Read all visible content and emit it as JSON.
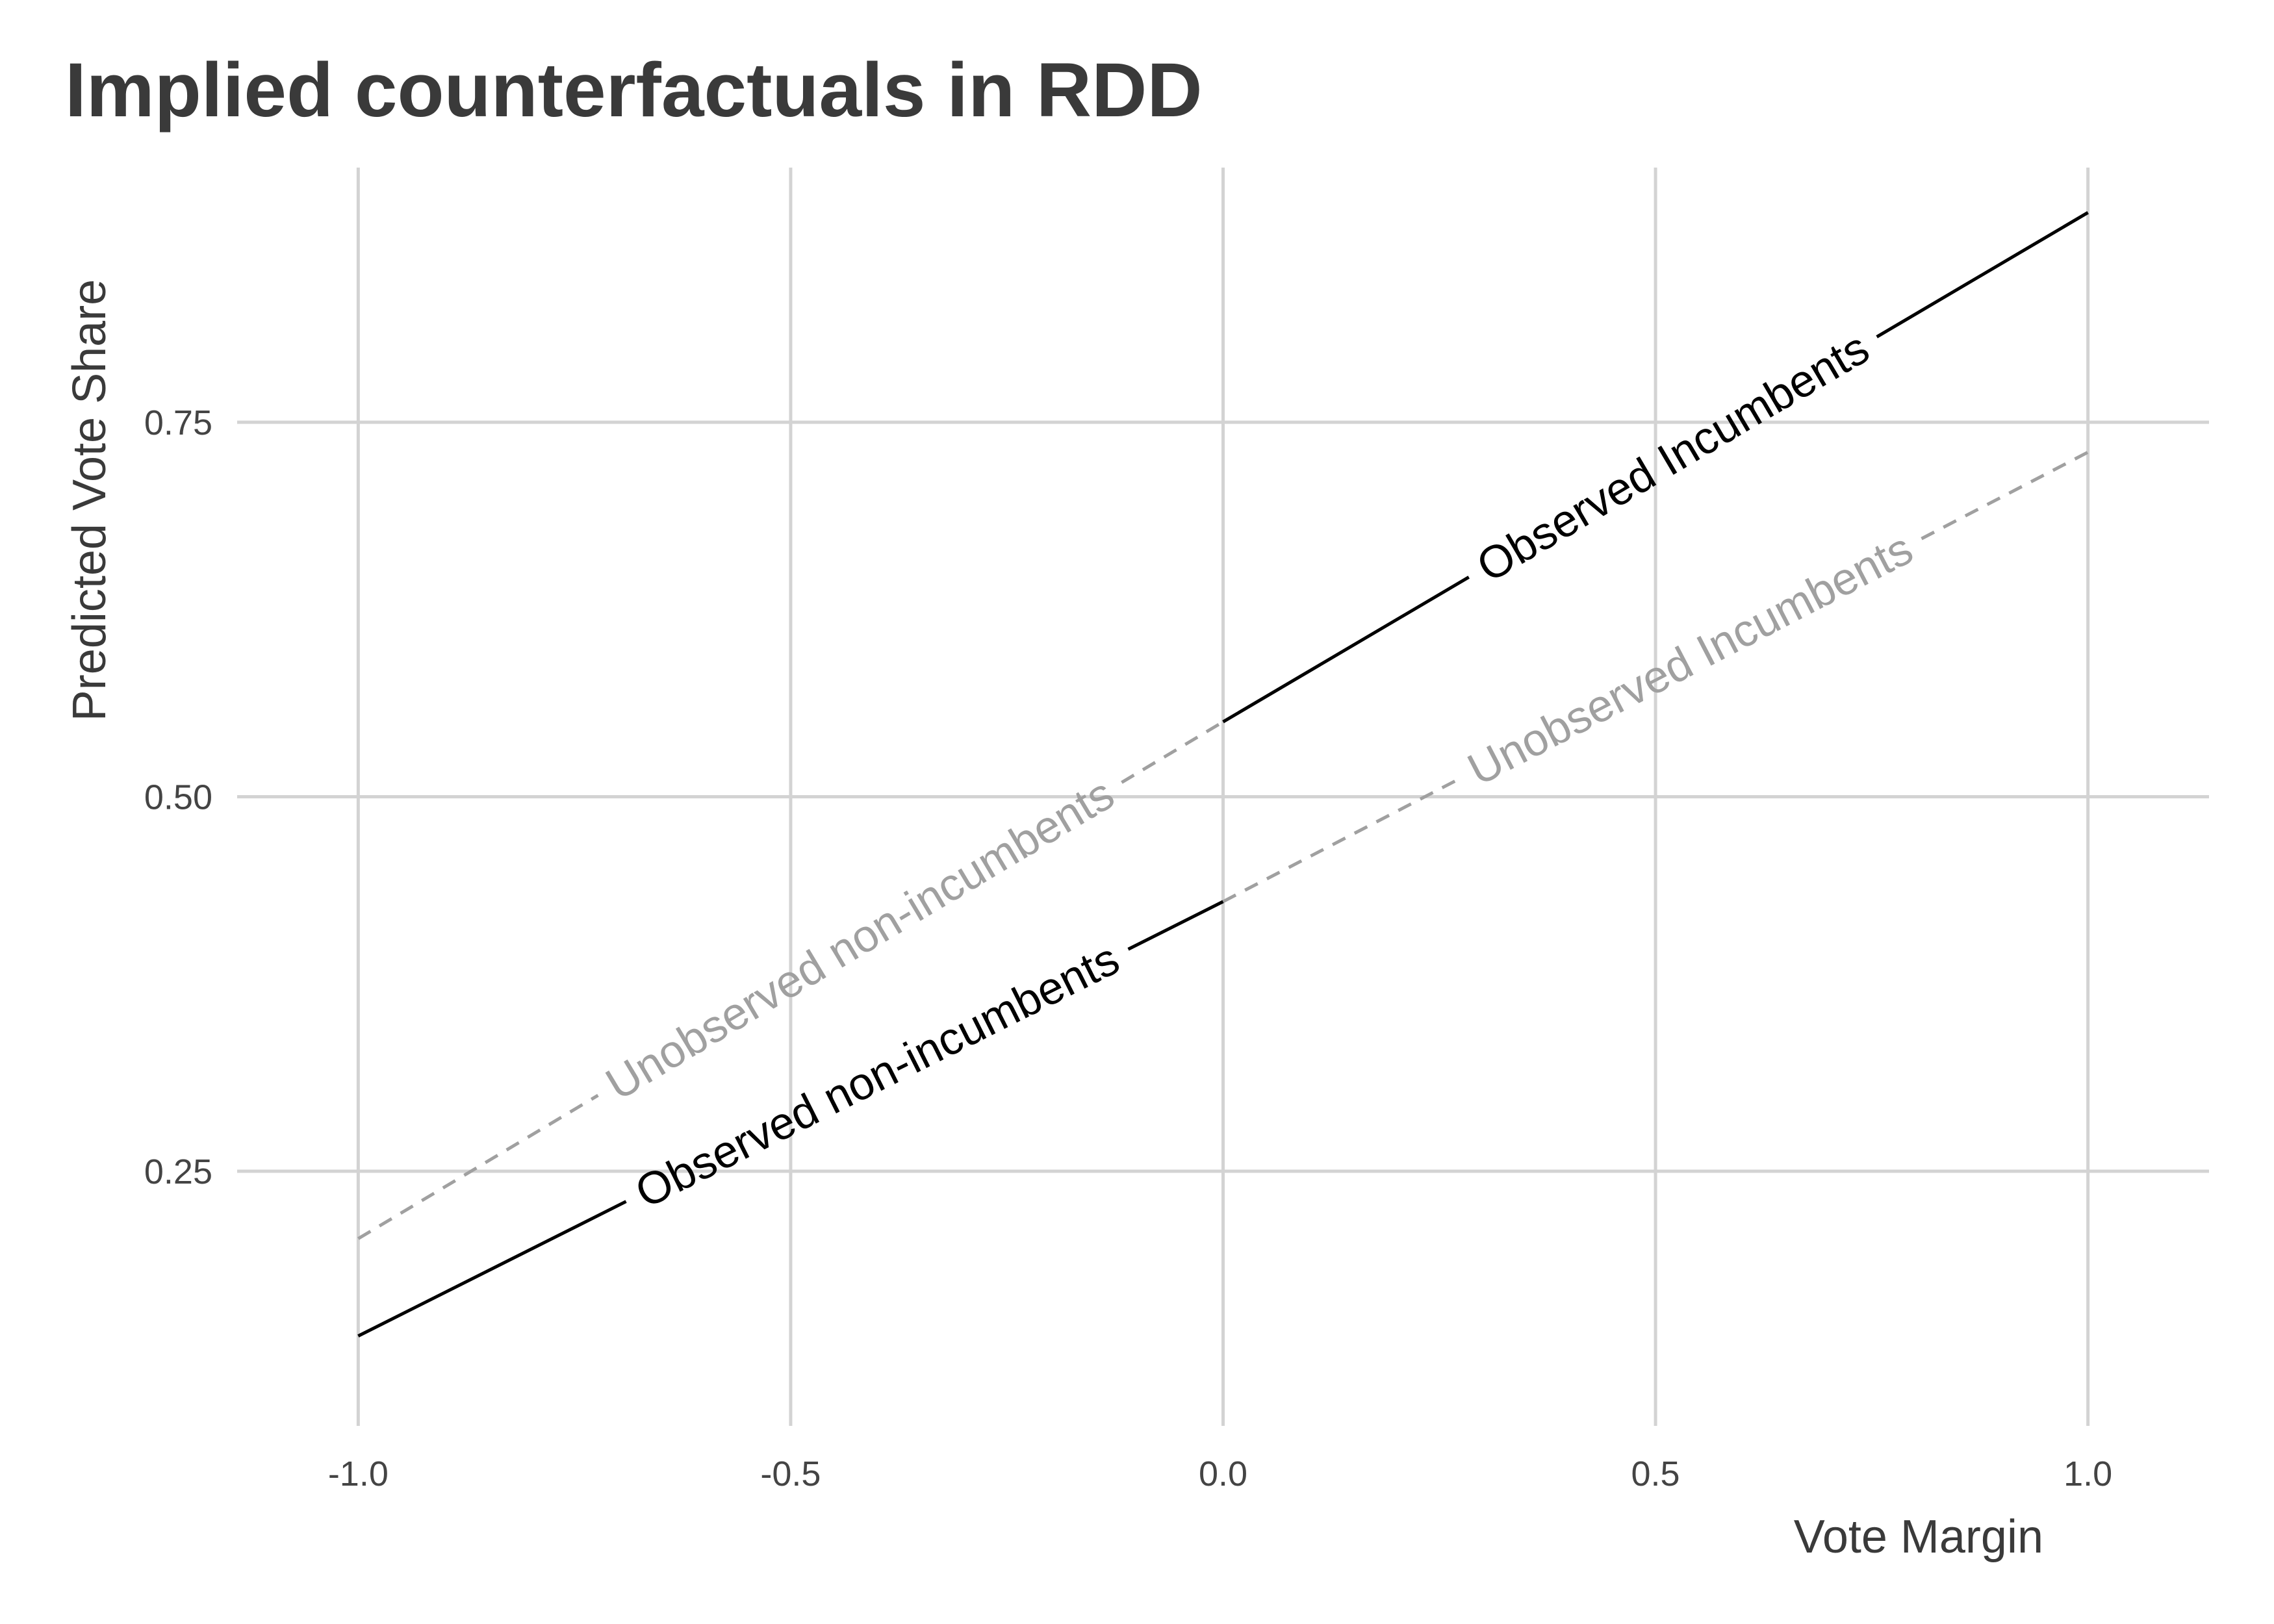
{
  "chart_data": {
    "type": "line",
    "title": "Implied counterfactuals in RDD",
    "xlabel": "Vote Margin",
    "ylabel": "Predicted Vote Share",
    "xlim": [
      -1.0,
      1.0
    ],
    "ylim": [
      0.12,
      0.92
    ],
    "x_ticks": [
      -1.0,
      -0.5,
      0.0,
      0.5,
      1.0
    ],
    "x_tick_labels": [
      "-1.0",
      "-0.5",
      "0.0",
      "0.5",
      "1.0"
    ],
    "y_ticks": [
      0.25,
      0.5,
      0.75
    ],
    "y_tick_labels": [
      "0.25",
      "0.50",
      "0.75"
    ],
    "grid": true,
    "legend": "none",
    "colors": {
      "observed": "#000000",
      "unobserved": "#a0a0a0",
      "grid": "#d3d3d3",
      "title": "#3a3a3a"
    },
    "series": [
      {
        "name": "Observed non-incumbents",
        "style": "solid",
        "x": [
          -1.0,
          0.0
        ],
        "y": [
          0.14,
          0.43
        ],
        "label_at": -0.4
      },
      {
        "name": "Unobserved non-incumbents",
        "style": "dashed",
        "x": [
          -1.0,
          0.0
        ],
        "y": [
          0.205,
          0.55
        ],
        "label_at": -0.42
      },
      {
        "name": "Observed Incumbents",
        "style": "solid",
        "x": [
          0.0,
          1.0
        ],
        "y": [
          0.55,
          0.89
        ],
        "label_at": 0.52
      },
      {
        "name": "Unobserved Incumbents",
        "style": "dashed",
        "x": [
          0.0,
          1.0
        ],
        "y": [
          0.43,
          0.73
        ],
        "label_at": 0.54
      }
    ]
  }
}
